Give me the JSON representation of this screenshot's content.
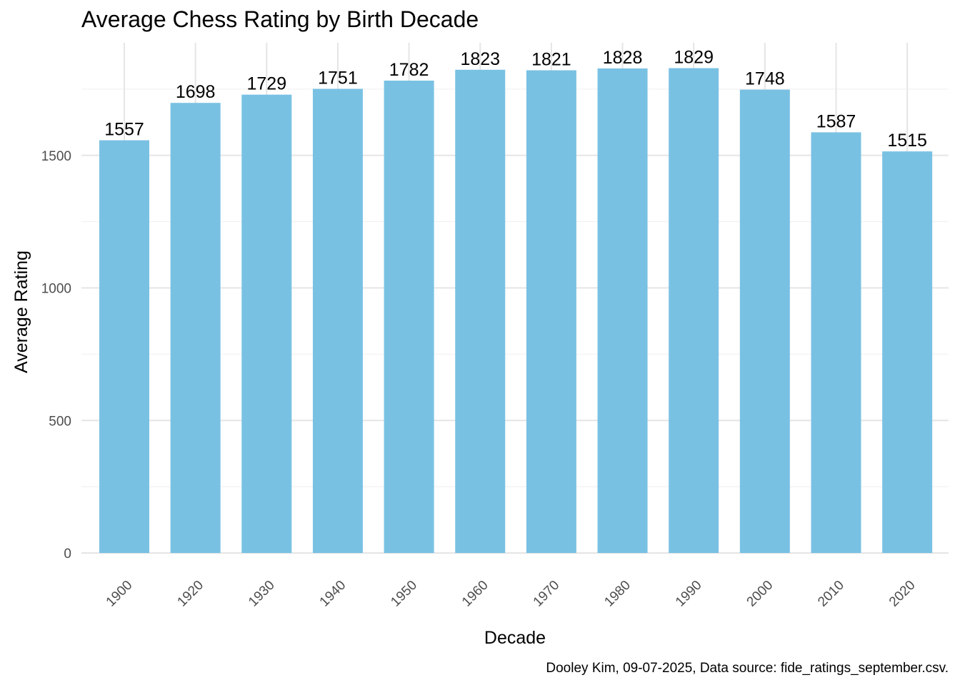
{
  "chart_data": {
    "type": "bar",
    "title": "Average Chess Rating by Birth Decade",
    "xlabel": "Decade",
    "ylabel": "Average Rating",
    "caption": "Dooley Kim, 09-07-2025, Data source: fide_ratings_september.csv.",
    "categories": [
      "1900",
      "1920",
      "1930",
      "1940",
      "1950",
      "1960",
      "1970",
      "1980",
      "1990",
      "2000",
      "2010",
      "2020"
    ],
    "values": [
      1557,
      1698,
      1729,
      1751,
      1782,
      1823,
      1821,
      1828,
      1829,
      1748,
      1587,
      1515
    ],
    "yticks": [
      0,
      500,
      1000,
      1500
    ],
    "ylim": [
      0,
      1900
    ],
    "grid": true,
    "legend": "none",
    "colors": {
      "bar": "#79c1e3",
      "grid_major": "#e5e5e5",
      "grid_minor": "#f2f2f2",
      "tick_text": "#4d4d4d"
    }
  }
}
